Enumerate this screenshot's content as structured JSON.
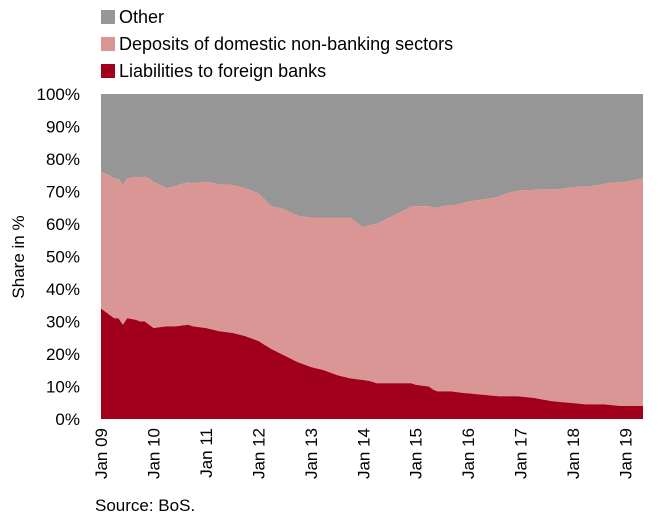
{
  "chart_data": {
    "type": "area",
    "stacked": true,
    "ylabel": "Share in %",
    "ylim": [
      0,
      100
    ],
    "yticks": [
      "0%",
      "10%",
      "20%",
      "30%",
      "40%",
      "50%",
      "60%",
      "70%",
      "80%",
      "90%",
      "100%"
    ],
    "xticks": [
      "Jan 09",
      "Jan 10",
      "Jan 11",
      "Jan 12",
      "Jan 13",
      "Jan 14",
      "Jan 15",
      "Jan 16",
      "Jan 17",
      "Jan 18",
      "Jan 19"
    ],
    "x_start": "2009-01",
    "x_end": "2019-05",
    "legend_position": "top-left",
    "source": "Source: BoS.",
    "series": [
      {
        "name": "Liabilities to foreign banks",
        "color": "#a0001c",
        "points": [
          [
            "2009-01",
            34
          ],
          [
            "2009-02",
            33
          ],
          [
            "2009-04",
            31
          ],
          [
            "2009-05",
            31
          ],
          [
            "2009-06",
            29
          ],
          [
            "2009-07",
            31
          ],
          [
            "2009-09",
            30.5
          ],
          [
            "2009-10",
            30
          ],
          [
            "2009-11",
            30
          ],
          [
            "2009-12",
            29
          ],
          [
            "2010-01",
            28
          ],
          [
            "2010-04",
            28.5
          ],
          [
            "2010-06",
            28.5
          ],
          [
            "2010-09",
            29
          ],
          [
            "2010-10",
            28.5
          ],
          [
            "2011-01",
            28
          ],
          [
            "2011-04",
            27
          ],
          [
            "2011-07",
            26.5
          ],
          [
            "2011-10",
            25.5
          ],
          [
            "2012-01",
            24
          ],
          [
            "2012-04",
            21.5
          ],
          [
            "2012-07",
            19.5
          ],
          [
            "2012-10",
            17.5
          ],
          [
            "2013-01",
            16
          ],
          [
            "2013-04",
            15
          ],
          [
            "2013-07",
            13.5
          ],
          [
            "2013-10",
            12.5
          ],
          [
            "2014-01",
            12
          ],
          [
            "2014-03",
            11.5
          ],
          [
            "2014-04",
            11
          ],
          [
            "2014-07",
            11
          ],
          [
            "2014-10",
            11
          ],
          [
            "2014-12",
            11
          ],
          [
            "2015-01",
            10.5
          ],
          [
            "2015-04",
            10
          ],
          [
            "2015-05",
            9
          ],
          [
            "2015-06",
            8.5
          ],
          [
            "2015-09",
            8.5
          ],
          [
            "2015-12",
            8
          ],
          [
            "2016-04",
            7.5
          ],
          [
            "2016-08",
            7
          ],
          [
            "2016-12",
            7
          ],
          [
            "2017-04",
            6.5
          ],
          [
            "2017-08",
            5.5
          ],
          [
            "2017-12",
            5
          ],
          [
            "2018-04",
            4.5
          ],
          [
            "2018-08",
            4.5
          ],
          [
            "2018-12",
            4
          ],
          [
            "2019-05",
            4
          ]
        ]
      },
      {
        "name": "Deposits of domestic non-banking sectors",
        "color": "#d99694",
        "points": [
          [
            "2009-01",
            42
          ],
          [
            "2009-03",
            43
          ],
          [
            "2009-05",
            43
          ],
          [
            "2009-07",
            43
          ],
          [
            "2009-09",
            44
          ],
          [
            "2009-12",
            45
          ],
          [
            "2010-01",
            45
          ],
          [
            "2010-04",
            42.5
          ],
          [
            "2010-07",
            43.5
          ],
          [
            "2010-10",
            44
          ],
          [
            "2011-01",
            45
          ],
          [
            "2011-07",
            45.5
          ],
          [
            "2011-10",
            45.5
          ],
          [
            "2012-01",
            45.5
          ],
          [
            "2012-04",
            44
          ],
          [
            "2012-07",
            45
          ],
          [
            "2012-10",
            45
          ],
          [
            "2013-01",
            46
          ],
          [
            "2013-04",
            47
          ],
          [
            "2013-07",
            48.5
          ],
          [
            "2013-10",
            49.5
          ],
          [
            "2014-01",
            47
          ],
          [
            "2014-04",
            49
          ],
          [
            "2014-07",
            51
          ],
          [
            "2014-10",
            53
          ],
          [
            "2015-01",
            55
          ],
          [
            "2015-04",
            55.5
          ],
          [
            "2015-07",
            57
          ],
          [
            "2015-10",
            57.5
          ],
          [
            "2016-01",
            59
          ],
          [
            "2016-04",
            60
          ],
          [
            "2016-07",
            61
          ],
          [
            "2016-10",
            62.5
          ],
          [
            "2017-01",
            63.5
          ],
          [
            "2017-04",
            64
          ],
          [
            "2017-07",
            65
          ],
          [
            "2017-10",
            65.5
          ],
          [
            "2018-01",
            66.5
          ],
          [
            "2018-04",
            67
          ],
          [
            "2018-07",
            67.5
          ],
          [
            "2018-10",
            68.5
          ],
          [
            "2019-01",
            69
          ],
          [
            "2019-05",
            70
          ]
        ]
      },
      {
        "name": "Other",
        "color": "#969696",
        "points": "remainder to 100%"
      }
    ]
  }
}
